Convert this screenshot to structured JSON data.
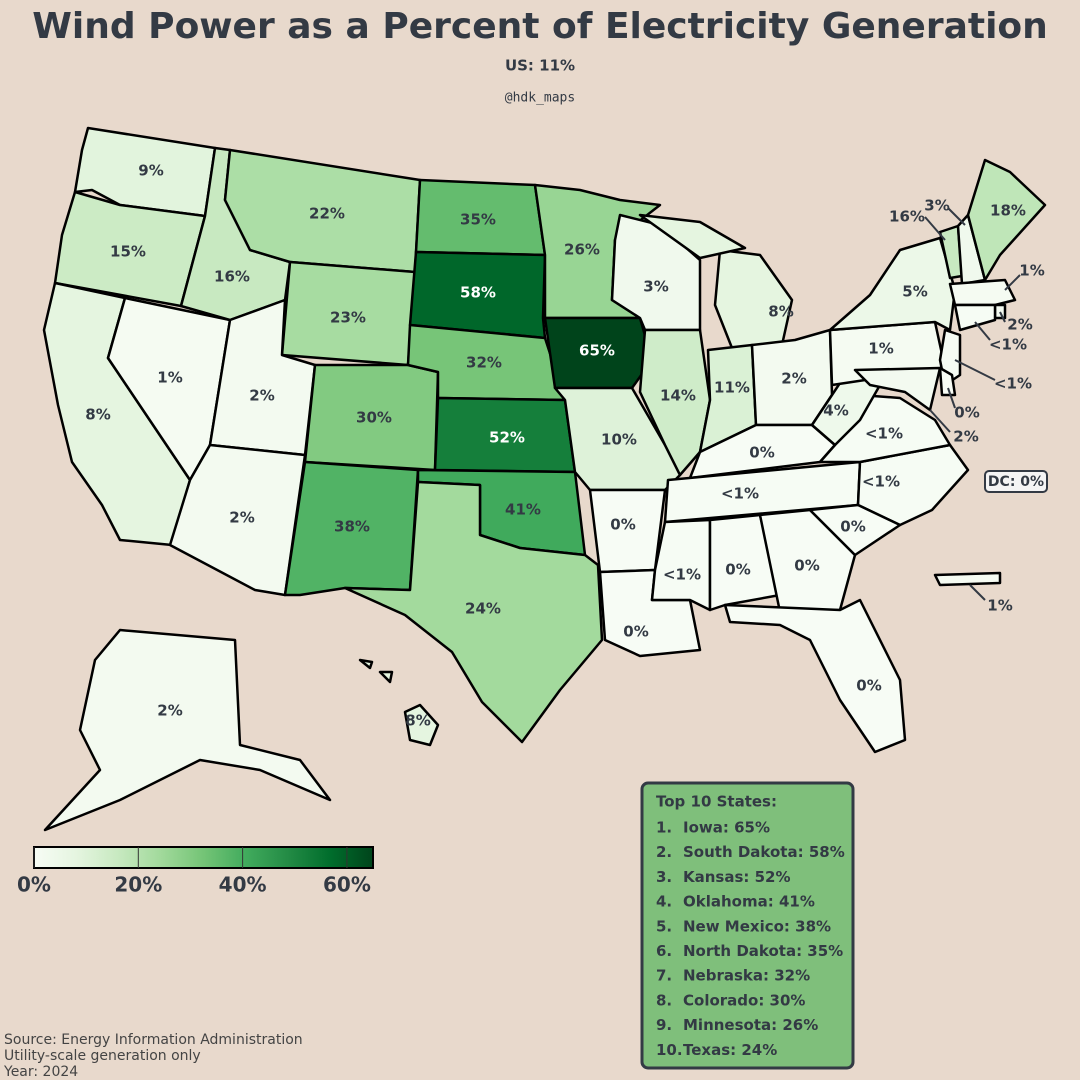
{
  "header": {
    "title": "Wind Power as a Percent of Electricity Generation",
    "subtitle": "US: 11%",
    "credit": "@hdk_maps"
  },
  "regions": [
    {
      "label": "9%",
      "value": 9
    },
    {
      "label": "15%",
      "value": 15
    },
    {
      "label": "8%",
      "value": 8
    },
    {
      "label": "1%",
      "value": 1
    },
    {
      "label": "16%",
      "value": 16
    },
    {
      "label": "22%",
      "value": 22
    },
    {
      "label": "23%",
      "value": 23
    },
    {
      "label": "2%",
      "value": 2
    },
    {
      "label": "2%",
      "value": 2
    },
    {
      "label": "30%",
      "value": 30
    },
    {
      "label": "38%",
      "value": 38
    },
    {
      "label": "35%",
      "value": 35
    },
    {
      "label": "58%",
      "value": 58
    },
    {
      "label": "32%",
      "value": 32
    },
    {
      "label": "52%",
      "value": 52
    },
    {
      "label": "41%",
      "value": 41
    },
    {
      "label": "24%",
      "value": 24
    },
    {
      "label": "26%",
      "value": 26
    },
    {
      "label": "65%",
      "value": 65
    },
    {
      "label": "10%",
      "value": 10
    },
    {
      "label": "3%",
      "value": 3
    },
    {
      "label": "14%",
      "value": 14
    },
    {
      "label": "8%",
      "value": 8
    },
    {
      "label": "11%",
      "value": 11
    },
    {
      "label": "2%",
      "value": 2
    },
    {
      "label": "0%",
      "value": 0
    },
    {
      "label": "<1%",
      "value": 0.5
    },
    {
      "label": "<1%",
      "value": 0.5
    },
    {
      "label": "<1%",
      "value": 0.5
    },
    {
      "label": "4%",
      "value": 4
    },
    {
      "label": "1%",
      "value": 1
    },
    {
      "label": "5%",
      "value": 5
    },
    {
      "label": "16%",
      "value": 16
    },
    {
      "label": "3%",
      "value": 3
    },
    {
      "label": "18%",
      "value": 18
    },
    {
      "label": "1%",
      "value": 1
    },
    {
      "label": "2%",
      "value": 2
    },
    {
      "label": "<1%",
      "value": 0.5
    },
    {
      "label": "<1%",
      "value": 0.5
    },
    {
      "label": "0%",
      "value": 0
    },
    {
      "label": "2%",
      "value": 2
    },
    {
      "label": "0%",
      "value": 0
    },
    {
      "label": "0%",
      "value": 0
    },
    {
      "label": "<1%",
      "value": 0.5
    },
    {
      "label": "0%",
      "value": 0
    },
    {
      "label": "0%",
      "value": 0
    },
    {
      "label": "0%",
      "value": 0
    },
    {
      "label": "0%",
      "value": 0
    },
    {
      "label": "2%",
      "value": 2
    },
    {
      "label": "8%",
      "value": 8
    },
    {
      "label": "1%",
      "value": 1
    }
  ],
  "dc": "DC: 0%",
  "colorbar": {
    "lim": [
      0,
      65
    ],
    "ticks": [
      {
        "value": 0,
        "label": "0%"
      },
      {
        "value": 20,
        "label": "20%"
      },
      {
        "value": 40,
        "label": "40%"
      },
      {
        "value": 60,
        "label": "60%"
      }
    ],
    "colors": [
      "#f7fcf5",
      "#e5f5e0",
      "#c7e9c0",
      "#a1d99b",
      "#74c476",
      "#41ab5d",
      "#238b45",
      "#006d2c",
      "#00441b"
    ]
  },
  "top10": {
    "title": "Top 10 States:",
    "items": [
      {
        "rank": "1.",
        "text": "Iowa: 65%"
      },
      {
        "rank": "2.",
        "text": "South Dakota: 58%"
      },
      {
        "rank": "3.",
        "text": "Kansas: 52%"
      },
      {
        "rank": "4.",
        "text": "Oklahoma: 41%"
      },
      {
        "rank": "5.",
        "text": "New Mexico: 38%"
      },
      {
        "rank": "6.",
        "text": "North Dakota: 35%"
      },
      {
        "rank": "7.",
        "text": "Nebraska: 32%"
      },
      {
        "rank": "8.",
        "text": "Colorado: 30%"
      },
      {
        "rank": "9.",
        "text": "Minnesota: 26%"
      },
      {
        "rank": "10.",
        "text": "Texas: 24%"
      }
    ]
  },
  "notes": [
    "Source: Energy Information Administration",
    "Utility-scale generation only",
    "Year: 2024"
  ]
}
